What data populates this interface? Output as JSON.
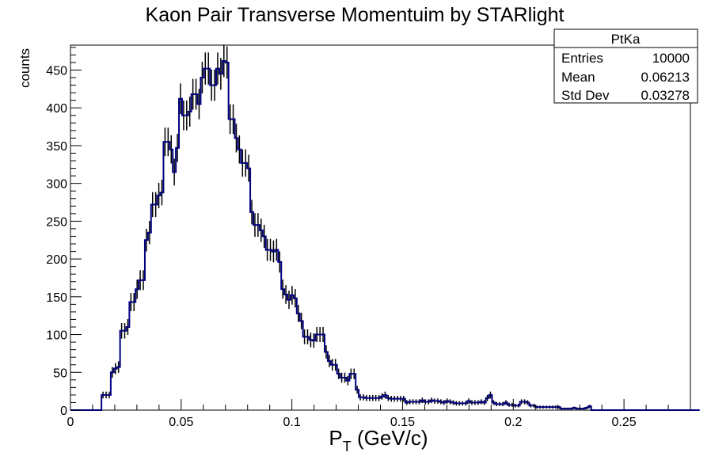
{
  "chart_data": {
    "type": "histogram",
    "title": "Kaon Pair Transverse Momentuim by STARlight",
    "xlabel": "P_T (GeV/c)",
    "xlabel_main": "P",
    "xlabel_sub": "T",
    "xlabel_rest": " (GeV/c)",
    "ylabel": "counts",
    "xlim": [
      0,
      0.28
    ],
    "ylim": [
      0,
      483
    ],
    "grid": false,
    "line_color": "#000080",
    "errorbar_color": "#000000",
    "x_tick_labels": [
      "0",
      "0.05",
      "0.1",
      "0.15",
      "0.2",
      "0.25"
    ],
    "x_tick_values": [
      0,
      0.05,
      0.1,
      0.15,
      0.2,
      0.25
    ],
    "y_tick_labels": [
      "0",
      "50",
      "100",
      "150",
      "200",
      "250",
      "300",
      "350",
      "400",
      "450"
    ],
    "y_tick_values": [
      0,
      50,
      100,
      150,
      200,
      250,
      300,
      350,
      400,
      450
    ],
    "bin_edges_start": 0,
    "bin_width": 0.0014,
    "bin_counts": [
      0,
      0,
      0,
      0,
      0,
      0,
      0,
      0,
      0,
      0,
      20,
      20,
      20,
      50,
      55,
      57,
      105,
      105,
      110,
      143,
      143,
      160,
      172,
      172,
      225,
      235,
      272,
      272,
      284,
      288,
      355,
      355,
      345,
      315,
      347,
      412,
      390,
      390,
      395,
      418,
      418,
      405,
      440,
      452,
      452,
      430,
      430,
      452,
      445,
      462,
      460,
      385,
      385,
      360,
      345,
      327,
      327,
      320,
      262,
      245,
      245,
      238,
      230,
      212,
      212,
      210,
      212,
      196,
      160,
      153,
      146,
      152,
      148,
      128,
      118,
      97,
      97,
      93,
      92,
      100,
      100,
      100,
      77,
      65,
      60,
      60,
      48,
      43,
      43,
      39,
      48,
      48,
      27,
      17,
      17,
      16,
      16,
      16,
      16,
      16,
      18,
      20,
      16,
      15,
      15,
      15,
      15,
      15,
      10,
      11,
      11,
      11,
      11,
      13,
      11,
      11,
      13,
      12,
      12,
      11,
      10,
      12,
      11,
      10,
      9,
      9,
      9,
      9,
      12,
      10,
      10,
      10,
      11,
      10,
      16,
      20,
      10,
      8,
      8,
      8,
      10,
      7,
      7,
      6,
      6,
      11,
      11,
      10,
      6,
      6,
      4,
      4,
      4,
      4,
      4,
      4,
      4,
      4,
      2,
      2,
      2,
      2,
      3,
      2,
      2,
      2,
      3,
      5,
      0,
      0,
      0,
      0,
      0,
      0,
      0,
      0,
      0,
      0,
      0,
      0,
      0,
      0,
      0,
      0,
      0,
      0,
      0,
      0,
      0,
      0,
      0,
      0,
      0,
      0,
      0,
      0,
      0,
      0,
      0,
      0,
      0,
      0,
      0
    ],
    "stats_box": {
      "name": "PtKa",
      "rows": [
        {
          "label": "Entries",
          "value": "10000"
        },
        {
          "label": "Mean",
          "value": "0.06213"
        },
        {
          "label": "Std Dev",
          "value": "0.03278"
        }
      ]
    }
  }
}
